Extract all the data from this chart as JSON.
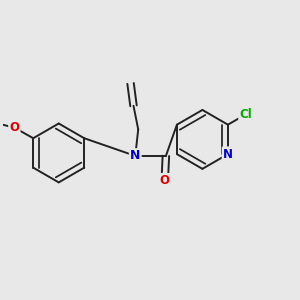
{
  "background_color": "#e8e8e8",
  "atom_colors": {
    "N": "#0000cc",
    "O_carbonyl": "#dd0000",
    "O_methoxy": "#dd0000",
    "Cl": "#00aa00",
    "N_pyridine": "#0000cc",
    "C": "#222222"
  },
  "bond_color": "#222222",
  "bond_width": 1.4,
  "font_size_atoms": 8.5,
  "xlim": [
    -2.2,
    2.8
  ],
  "ylim": [
    -1.8,
    1.8
  ]
}
